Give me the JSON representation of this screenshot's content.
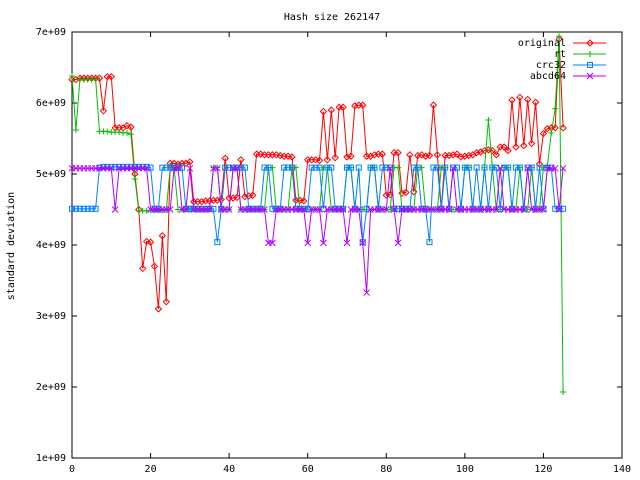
{
  "chart_data": {
    "type": "line",
    "title": "Hash size 262147",
    "xlabel": "",
    "ylabel": "standard deviation",
    "xlim": [
      0,
      140
    ],
    "ylim": [
      1000000000,
      7000000000
    ],
    "x_ticks": [
      0,
      20,
      40,
      60,
      80,
      100,
      120,
      140
    ],
    "x_tick_labels": [
      "0",
      "20",
      "40",
      "60",
      "80",
      "100",
      "120",
      "140"
    ],
    "y_ticks": [
      1000000000,
      2000000000,
      3000000000,
      4000000000,
      5000000000,
      6000000000,
      7000000000
    ],
    "y_tick_labels": [
      "1e+09",
      "2e+09",
      "3e+09",
      "4e+09",
      "5e+09",
      "6e+09",
      "7e+09"
    ],
    "grid": false,
    "legend_position": "top-right",
    "series": [
      {
        "name": "original",
        "color": "#ff0000",
        "marker": "diamond",
        "x": [
          0,
          1,
          2,
          3,
          4,
          5,
          6,
          7,
          8,
          9,
          10,
          11,
          12,
          13,
          14,
          15,
          16,
          17,
          18,
          19,
          20,
          21,
          22,
          23,
          24,
          25,
          26,
          27,
          28,
          29,
          30,
          31,
          32,
          33,
          34,
          35,
          36,
          37,
          38,
          39,
          40,
          41,
          42,
          43,
          44,
          45,
          46,
          47,
          48,
          49,
          50,
          51,
          52,
          53,
          54,
          55,
          56,
          57,
          58,
          59,
          60,
          61,
          62,
          63,
          64,
          65,
          66,
          67,
          68,
          69,
          70,
          71,
          72,
          73,
          74,
          75,
          76,
          77,
          78,
          79,
          80,
          81,
          82,
          83,
          84,
          85,
          86,
          87,
          88,
          89,
          90,
          91,
          92,
          93,
          94,
          95,
          96,
          97,
          98,
          99,
          100,
          101,
          102,
          103,
          104,
          105,
          106,
          107,
          108,
          109,
          110,
          111,
          112,
          113,
          114,
          115,
          116,
          117,
          118,
          119,
          120,
          121,
          122,
          123,
          124,
          125
        ],
        "y": [
          6330000000,
          6330000000,
          6350000000,
          6350000000,
          6350000000,
          6350000000,
          6350000000,
          6350000000,
          5890000000,
          6370000000,
          6370000000,
          5650000000,
          5650000000,
          5650000000,
          5680000000,
          5660000000,
          5000000000,
          4500000000,
          3670000000,
          4050000000,
          4040000000,
          3700000000,
          3100000000,
          4130000000,
          3200000000,
          5150000000,
          5150000000,
          5140000000,
          5150000000,
          5150000000,
          5170000000,
          4610000000,
          4610000000,
          4610000000,
          4620000000,
          4620000000,
          4630000000,
          4630000000,
          4640000000,
          5220000000,
          4660000000,
          4660000000,
          4670000000,
          5200000000,
          4680000000,
          4690000000,
          4700000000,
          5280000000,
          5280000000,
          5270000000,
          5270000000,
          5270000000,
          5270000000,
          5260000000,
          5250000000,
          5250000000,
          5240000000,
          4630000000,
          4630000000,
          4620000000,
          5200000000,
          5200000000,
          5200000000,
          5190000000,
          5880000000,
          5200000000,
          5900000000,
          5230000000,
          5940000000,
          5940000000,
          5240000000,
          5250000000,
          5960000000,
          5970000000,
          5970000000,
          5250000000,
          5250000000,
          5270000000,
          5280000000,
          5280000000,
          4700000000,
          4710000000,
          5300000000,
          5300000000,
          4730000000,
          4740000000,
          5270000000,
          4750000000,
          5260000000,
          5270000000,
          5250000000,
          5260000000,
          5970000000,
          5270000000,
          4520000000,
          5260000000,
          5260000000,
          5270000000,
          5280000000,
          5240000000,
          5250000000,
          5260000000,
          5270000000,
          5300000000,
          5310000000,
          5330000000,
          5340000000,
          5330000000,
          5270000000,
          5380000000,
          5380000000,
          5330000000,
          6040000000,
          5380000000,
          6080000000,
          5400000000,
          6050000000,
          5430000000,
          6010000000,
          5140000000,
          5570000000,
          5640000000,
          5650000000,
          5650000000,
          6900000000,
          5650000000
        ]
      },
      {
        "name": "rt",
        "color": "#00c000",
        "marker": "plus",
        "x": [
          0,
          1,
          2,
          3,
          4,
          5,
          6,
          7,
          8,
          9,
          10,
          11,
          12,
          13,
          14,
          15,
          16,
          17,
          18,
          19,
          20,
          21,
          22,
          23,
          24,
          25,
          26,
          27,
          28,
          29,
          30,
          31,
          32,
          33,
          34,
          35,
          36,
          37,
          38,
          39,
          40,
          41,
          42,
          43,
          44,
          45,
          46,
          47,
          48,
          49,
          50,
          51,
          52,
          53,
          54,
          55,
          56,
          57,
          58,
          59,
          60,
          61,
          62,
          63,
          64,
          65,
          66,
          67,
          68,
          69,
          70,
          71,
          72,
          73,
          74,
          75,
          76,
          77,
          78,
          79,
          80,
          81,
          82,
          83,
          84,
          85,
          86,
          87,
          88,
          89,
          90,
          91,
          92,
          93,
          94,
          95,
          96,
          97,
          98,
          99,
          100,
          101,
          102,
          103,
          104,
          105,
          106,
          107,
          108,
          109,
          110,
          111,
          112,
          113,
          114,
          115,
          116,
          117,
          118,
          119,
          120,
          121,
          122,
          123,
          124,
          125
        ],
        "y": [
          6380000000,
          5620000000,
          6330000000,
          6330000000,
          6330000000,
          6330000000,
          6330000000,
          5600000000,
          5600000000,
          5600000000,
          5590000000,
          5590000000,
          5590000000,
          5580000000,
          5580000000,
          5560000000,
          4930000000,
          4480000000,
          4480000000,
          4480000000,
          4490000000,
          4490000000,
          4490000000,
          4490000000,
          4490000000,
          5090000000,
          5090000000,
          4500000000,
          4500000000,
          4500000000,
          4500000000,
          4500000000,
          4500000000,
          4500000000,
          4500000000,
          4500000000,
          5090000000,
          5090000000,
          4500000000,
          4500000000,
          4500000000,
          5090000000,
          5090000000,
          4500000000,
          4500000000,
          4500000000,
          4500000000,
          4500000000,
          4500000000,
          4500000000,
          5090000000,
          5090000000,
          4500000000,
          4500000000,
          4500000000,
          4500000000,
          5090000000,
          5090000000,
          4500000000,
          4500000000,
          4500000000,
          4500000000,
          4500000000,
          4500000000,
          5090000000,
          5090000000,
          4500000000,
          4500000000,
          4500000000,
          4500000000,
          5090000000,
          5090000000,
          4500000000,
          4500000000,
          4500000000,
          4500000000,
          5090000000,
          5090000000,
          4500000000,
          4500000000,
          4500000000,
          4500000000,
          5090000000,
          5090000000,
          4500000000,
          4500000000,
          4500000000,
          4500000000,
          5090000000,
          5090000000,
          4500000000,
          4500000000,
          4500000000,
          4500000000,
          5090000000,
          5090000000,
          4500000000,
          4500000000,
          4500000000,
          4500000000,
          5090000000,
          5090000000,
          4500000000,
          4500000000,
          4500000000,
          5090000000,
          5760000000,
          5090000000,
          4500000000,
          4500000000,
          5090000000,
          5090000000,
          4500000000,
          4500000000,
          5090000000,
          4500000000,
          4500000000,
          5090000000,
          4500000000,
          4500000000,
          5090000000,
          5120000000,
          5580000000,
          5920000000,
          6940000000,
          1930000000
        ]
      },
      {
        "name": "crc32",
        "color": "#0080ff",
        "marker": "square",
        "x": [
          0,
          1,
          2,
          3,
          4,
          5,
          6,
          7,
          8,
          9,
          10,
          11,
          12,
          13,
          14,
          15,
          16,
          17,
          18,
          19,
          20,
          21,
          22,
          23,
          24,
          25,
          26,
          27,
          28,
          29,
          30,
          31,
          32,
          33,
          34,
          35,
          36,
          37,
          38,
          39,
          40,
          41,
          42,
          43,
          44,
          45,
          46,
          47,
          48,
          49,
          50,
          51,
          52,
          53,
          54,
          55,
          56,
          57,
          58,
          59,
          60,
          61,
          62,
          63,
          64,
          65,
          66,
          67,
          68,
          69,
          70,
          71,
          72,
          73,
          74,
          75,
          76,
          77,
          78,
          79,
          80,
          81,
          82,
          83,
          84,
          85,
          86,
          87,
          88,
          89,
          90,
          91,
          92,
          93,
          94,
          95,
          96,
          97,
          98,
          99,
          100,
          101,
          102,
          103,
          104,
          105,
          106,
          107,
          108,
          109,
          110,
          111,
          112,
          113,
          114,
          115,
          116,
          117,
          118,
          119,
          120,
          121,
          122,
          123,
          124,
          125
        ],
        "y": [
          4510000000,
          4510000000,
          4510000000,
          4510000000,
          4510000000,
          4510000000,
          4510000000,
          5090000000,
          5100000000,
          5100000000,
          5100000000,
          5100000000,
          5100000000,
          5100000000,
          5100000000,
          5100000000,
          5100000000,
          5100000000,
          5100000000,
          5100000000,
          5090000000,
          4510000000,
          4510000000,
          5090000000,
          5090000000,
          5090000000,
          5090000000,
          5090000000,
          5090000000,
          4510000000,
          4510000000,
          4510000000,
          4510000000,
          4510000000,
          4510000000,
          4510000000,
          4510000000,
          4040000000,
          4510000000,
          5090000000,
          5090000000,
          5090000000,
          5090000000,
          5090000000,
          5090000000,
          4510000000,
          4510000000,
          4510000000,
          4510000000,
          5090000000,
          5090000000,
          4510000000,
          4510000000,
          4510000000,
          5090000000,
          5090000000,
          5090000000,
          4510000000,
          4510000000,
          4510000000,
          4510000000,
          5090000000,
          5090000000,
          5090000000,
          4510000000,
          5090000000,
          5090000000,
          4510000000,
          4510000000,
          4510000000,
          5090000000,
          5090000000,
          4510000000,
          5090000000,
          4040000000,
          4510000000,
          5090000000,
          5090000000,
          4510000000,
          5090000000,
          5090000000,
          5090000000,
          4510000000,
          4510000000,
          4510000000,
          4510000000,
          4510000000,
          5090000000,
          5090000000,
          4510000000,
          4510000000,
          4040000000,
          5090000000,
          5090000000,
          4510000000,
          5090000000,
          4510000000,
          5090000000,
          5090000000,
          4510000000,
          5090000000,
          5090000000,
          4510000000,
          5090000000,
          4510000000,
          5090000000,
          4510000000,
          5090000000,
          5090000000,
          4510000000,
          5090000000,
          5090000000,
          4510000000,
          5090000000,
          5090000000,
          4510000000,
          5090000000,
          5090000000,
          4510000000,
          5090000000,
          4510000000,
          5090000000,
          5090000000,
          4510000000,
          4510000000,
          4510000000
        ]
      },
      {
        "name": "abcd64",
        "color": "#b000ff",
        "marker": "cross",
        "x": [
          0,
          1,
          2,
          3,
          4,
          5,
          6,
          7,
          8,
          9,
          10,
          11,
          12,
          13,
          14,
          15,
          16,
          17,
          18,
          19,
          20,
          21,
          22,
          23,
          24,
          25,
          26,
          27,
          28,
          29,
          30,
          31,
          32,
          33,
          34,
          35,
          36,
          37,
          38,
          39,
          40,
          41,
          42,
          43,
          44,
          45,
          46,
          47,
          48,
          49,
          50,
          51,
          52,
          53,
          54,
          55,
          56,
          57,
          58,
          59,
          60,
          61,
          62,
          63,
          64,
          65,
          66,
          67,
          68,
          69,
          70,
          71,
          72,
          73,
          74,
          75,
          76,
          77,
          78,
          79,
          80,
          81,
          82,
          83,
          84,
          85,
          86,
          87,
          88,
          89,
          90,
          91,
          92,
          93,
          94,
          95,
          96,
          97,
          98,
          99,
          100,
          101,
          102,
          103,
          104,
          105,
          106,
          107,
          108,
          109,
          110,
          111,
          112,
          113,
          114,
          115,
          116,
          117,
          118,
          119,
          120,
          121,
          122,
          123,
          124,
          125
        ],
        "y": [
          5080000000,
          5080000000,
          5080000000,
          5080000000,
          5080000000,
          5080000000,
          5080000000,
          5080000000,
          5080000000,
          5080000000,
          5080000000,
          4500000000,
          5080000000,
          5080000000,
          5080000000,
          5080000000,
          5080000000,
          5080000000,
          5080000000,
          5080000000,
          4500000000,
          4500000000,
          4500000000,
          4500000000,
          4500000000,
          4500000000,
          5080000000,
          5080000000,
          4500000000,
          4500000000,
          5080000000,
          4500000000,
          4500000000,
          4500000000,
          4500000000,
          4500000000,
          5080000000,
          5080000000,
          4500000000,
          4500000000,
          4500000000,
          5080000000,
          5080000000,
          4500000000,
          4500000000,
          4500000000,
          4500000000,
          4500000000,
          4500000000,
          4500000000,
          4030000000,
          4030000000,
          4500000000,
          4500000000,
          4500000000,
          4500000000,
          4500000000,
          4500000000,
          4500000000,
          4500000000,
          4030000000,
          4500000000,
          4500000000,
          4500000000,
          4030000000,
          4500000000,
          4500000000,
          4500000000,
          4500000000,
          4500000000,
          4030000000,
          4500000000,
          4500000000,
          4500000000,
          4030000000,
          3330000000,
          4500000000,
          4500000000,
          4500000000,
          4500000000,
          4500000000,
          5080000000,
          4500000000,
          4030000000,
          4500000000,
          4500000000,
          4500000000,
          4500000000,
          4500000000,
          4500000000,
          4500000000,
          4500000000,
          4500000000,
          4500000000,
          4500000000,
          4500000000,
          4500000000,
          5080000000,
          4500000000,
          4500000000,
          4500000000,
          4500000000,
          4500000000,
          4500000000,
          4500000000,
          4500000000,
          4500000000,
          4500000000,
          4500000000,
          5080000000,
          4500000000,
          4500000000,
          4500000000,
          4500000000,
          4500000000,
          4500000000,
          5080000000,
          4500000000,
          4500000000,
          4500000000,
          4500000000,
          5080000000,
          5080000000,
          5080000000,
          4500000000,
          5080000000
        ]
      }
    ]
  }
}
